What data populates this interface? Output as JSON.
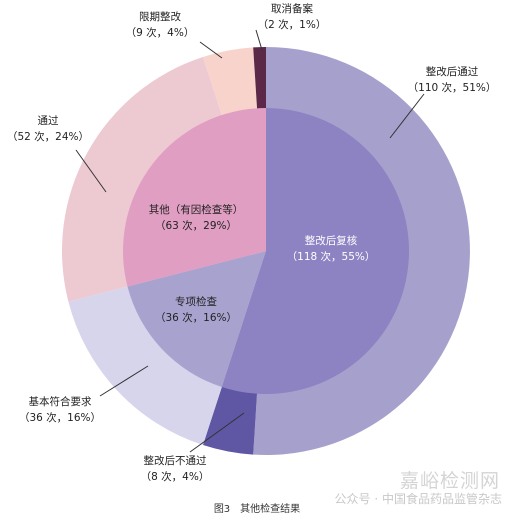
{
  "chart_data": {
    "type": "pie",
    "subtype": "nested-donut",
    "title": "图3　其他检查结果",
    "inner_ring": [
      {
        "name": "整改后复核",
        "count": "118次",
        "value": 55,
        "label": "整改后复核",
        "sub": "（118 次，55%）",
        "color": "#8d82c2"
      },
      {
        "name": "专项检查",
        "count": "36次",
        "value": 16,
        "label": "专项检查",
        "sub": "（36 次，16%）",
        "color": "#a8a2cf"
      },
      {
        "name": "其他（有因检查等）",
        "count": "63次",
        "value": 29,
        "label": "其他（有因检查等）",
        "sub": "（63 次，29%）",
        "color": "#e19ec3"
      }
    ],
    "outer_ring": [
      {
        "name": "整改后通过",
        "count": "110次",
        "value": 51,
        "label": "整改后通过",
        "sub": "（110 次，51%）",
        "color": "#a6a1cc"
      },
      {
        "name": "整改后不通过",
        "count": "8次",
        "value": 4,
        "label": "整改后不通过",
        "sub": "（8 次，4%）",
        "color": "#5f56a4"
      },
      {
        "name": "基本符合要求",
        "count": "36次",
        "value": 16,
        "label": "基本符合要求",
        "sub": "（36 次，16%）",
        "color": "#d7d5ec"
      },
      {
        "name": "通过",
        "count": "52次",
        "value": 24,
        "label": "通过",
        "sub": "（52 次，24%）",
        "color": "#edc9d2"
      },
      {
        "name": "限期整改",
        "count": "9次",
        "value": 4,
        "label": "限期整改",
        "sub": "（9 次，4%）",
        "color": "#f8d3cc"
      },
      {
        "name": "取消备案",
        "count": "2次",
        "value": 1,
        "label": "取消备案",
        "sub": "（2 次，1%）",
        "color": "#5b2848"
      }
    ]
  },
  "caption": "图3　其他检查结果",
  "watermark": {
    "line1": "嘉峪检测网",
    "line2": "公众号 · 中国食品药品监管杂志"
  }
}
